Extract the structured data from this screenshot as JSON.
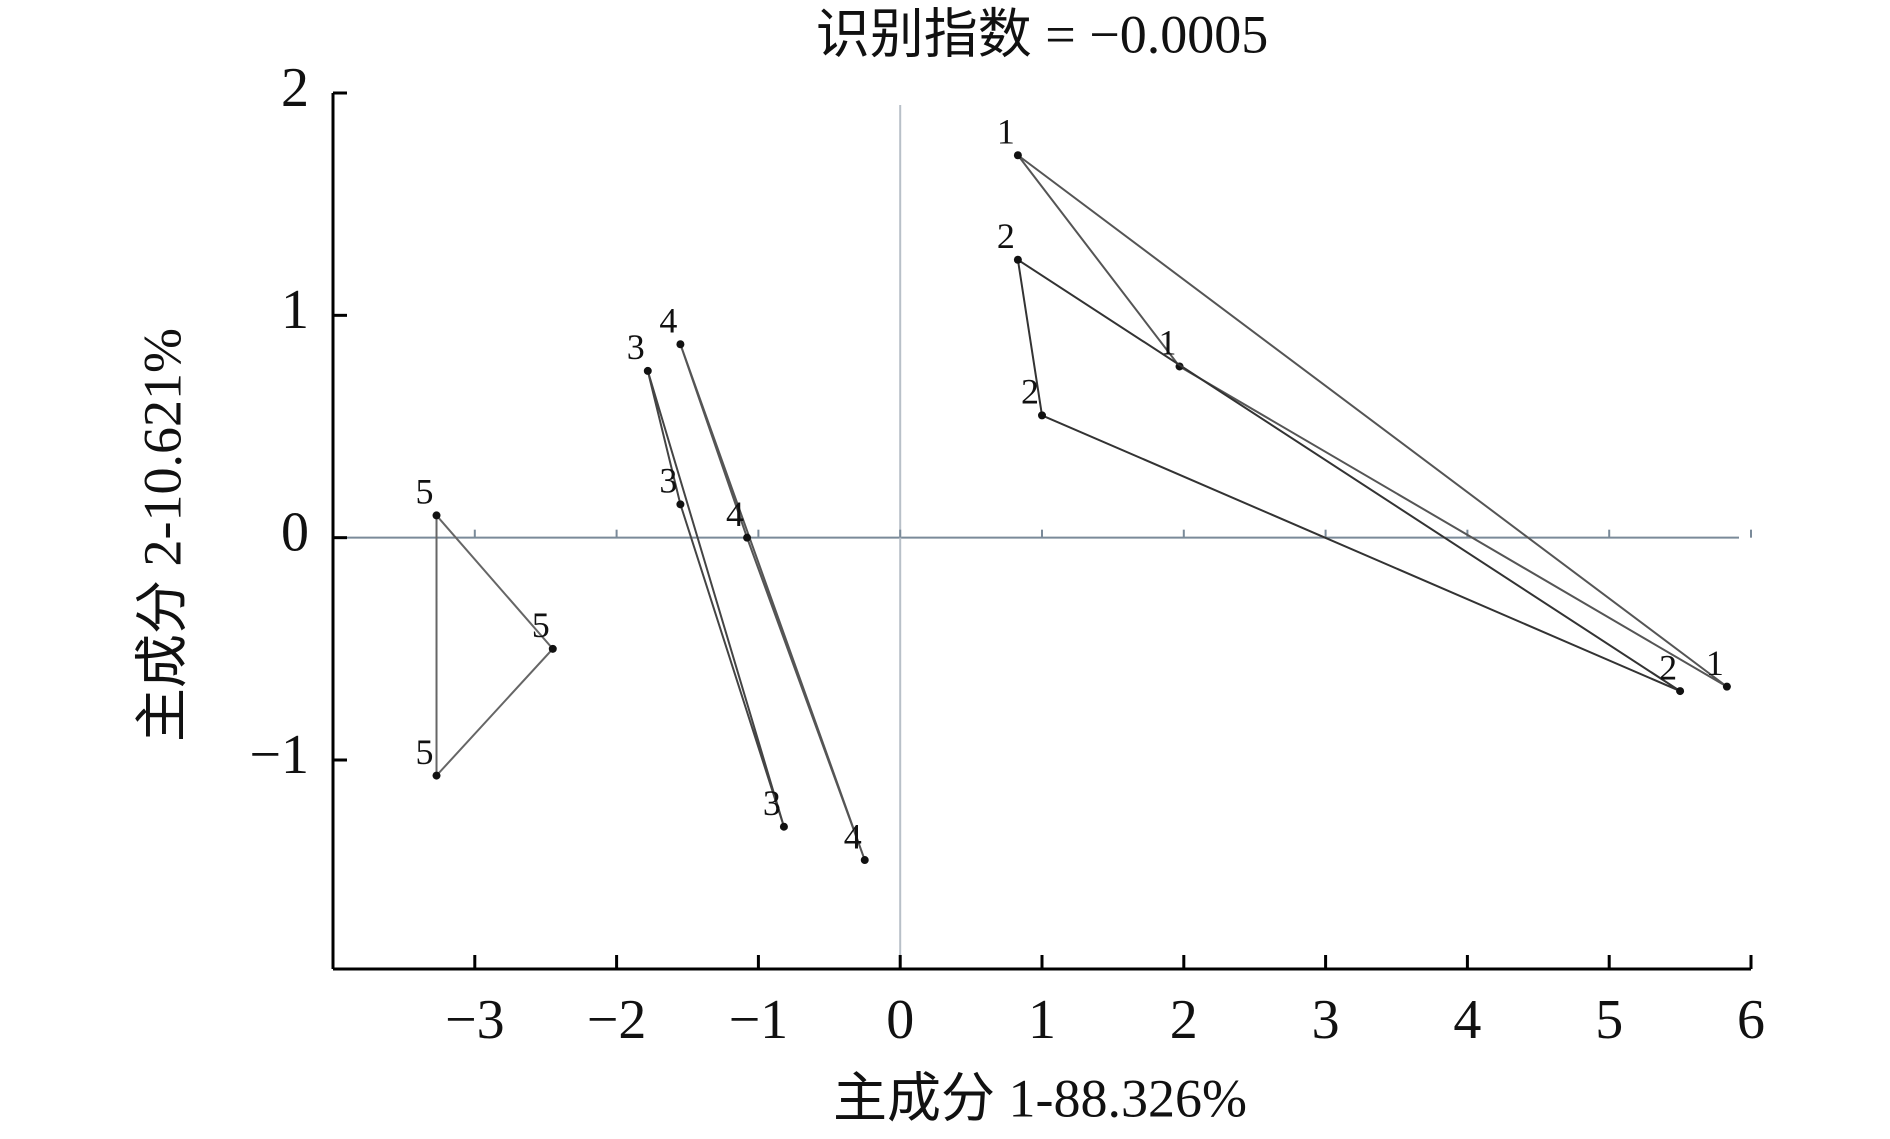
{
  "chart_data": {
    "type": "scatter",
    "title": "识别指数 = −0.0005",
    "x_label": "主成分 1-88.326%",
    "y_label": "主成分 2-10.621%",
    "xlim": [
      -4,
      6
    ],
    "ylim": [
      -1.94,
      2
    ],
    "xticks": [
      {
        "value": -3,
        "label": "−3"
      },
      {
        "value": -2,
        "label": "−2"
      },
      {
        "value": -1,
        "label": "−1"
      },
      0,
      1,
      2,
      3,
      4,
      5,
      6
    ],
    "yticks": [
      {
        "value": -1,
        "label": "−1"
      },
      0,
      1,
      2
    ],
    "series": [
      {
        "name": "1",
        "color": "#555555",
        "x": [
          0.83,
          1.97,
          5.83
        ],
        "y": [
          1.72,
          0.77,
          -0.67
        ]
      },
      {
        "name": "2",
        "color": "#333333",
        "x": [
          0.83,
          1.0,
          5.5
        ],
        "y": [
          1.25,
          0.55,
          -0.69
        ]
      },
      {
        "name": "3",
        "color": "#444444",
        "x": [
          -1.78,
          -1.55,
          -0.82
        ],
        "y": [
          0.75,
          0.15,
          -1.3
        ]
      },
      {
        "name": "4",
        "color": "#555555",
        "x": [
          -1.55,
          -1.08,
          -0.25
        ],
        "y": [
          0.87,
          0.0,
          -1.45
        ]
      },
      {
        "name": "5",
        "color": "#666666",
        "x": [
          -3.27,
          -2.45,
          -3.27
        ],
        "y": [
          0.1,
          -0.5,
          -1.07
        ]
      }
    ]
  }
}
